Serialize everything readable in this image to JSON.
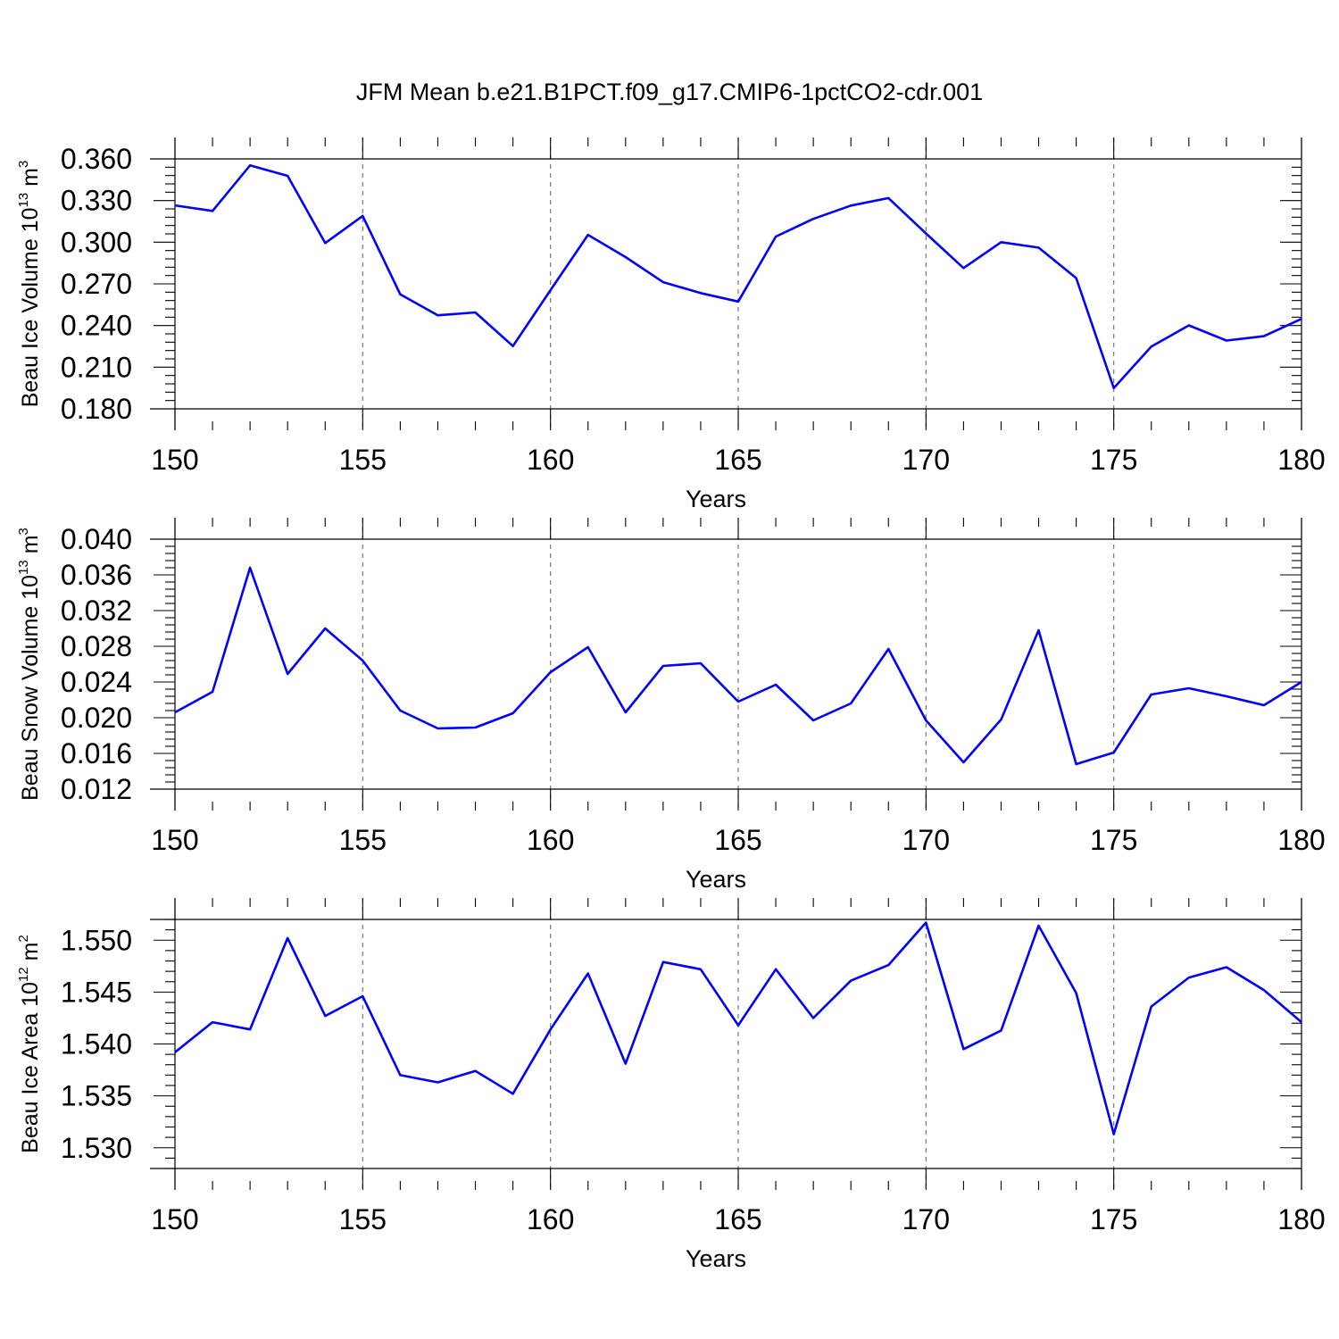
{
  "title": "JFM Mean b.e21.B1PCT.f09_g17.CMIP6-1pctCO2-cdr.001",
  "line_color": "#0000ff",
  "chart_data": [
    {
      "type": "line",
      "ylabel": "Beau Ice Volume 10",
      "ylabel_exp": "13",
      "ylabel_unit": "m",
      "ylabel_unit_exp": "3",
      "xlabel": "Years",
      "xlim": [
        150,
        180
      ],
      "ylim": [
        0.18,
        0.36
      ],
      "yticks": [
        "0.180",
        "0.210",
        "0.240",
        "0.270",
        "0.300",
        "0.330",
        "0.360"
      ],
      "xticks": [
        "150",
        "155",
        "160",
        "165",
        "170",
        "175",
        "180"
      ],
      "x": [
        150,
        151,
        152,
        153,
        154,
        155,
        156,
        157,
        158,
        159,
        160,
        161,
        162,
        163,
        164,
        165,
        166,
        167,
        168,
        169,
        170,
        171,
        172,
        173,
        174,
        175,
        176,
        177,
        178,
        179,
        180
      ],
      "values": [
        0.3265,
        0.3225,
        0.3553,
        0.3478,
        0.2994,
        0.3189,
        0.2624,
        0.2474,
        0.2494,
        0.2252,
        0.2655,
        0.3053,
        0.2893,
        0.2712,
        0.2634,
        0.2573,
        0.3041,
        0.3168,
        0.3264,
        0.3318,
        0.3063,
        0.2814,
        0.3,
        0.2961,
        0.2742,
        0.195,
        0.2248,
        0.2401,
        0.2292,
        0.2323,
        0.2448
      ]
    },
    {
      "type": "line",
      "ylabel": "Beau Snow Volume 10",
      "ylabel_exp": "13",
      "ylabel_unit": "m",
      "ylabel_unit_exp": "3",
      "xlabel": "Years",
      "xlim": [
        150,
        180
      ],
      "ylim": [
        0.012,
        0.04
      ],
      "yticks": [
        "0.012",
        "0.016",
        "0.020",
        "0.024",
        "0.028",
        "0.032",
        "0.036",
        "0.040"
      ],
      "xticks": [
        "150",
        "155",
        "160",
        "165",
        "170",
        "175",
        "180"
      ],
      "x": [
        150,
        151,
        152,
        153,
        154,
        155,
        156,
        157,
        158,
        159,
        160,
        161,
        162,
        163,
        164,
        165,
        166,
        167,
        168,
        169,
        170,
        171,
        172,
        173,
        174,
        175,
        176,
        177,
        178,
        179,
        180
      ],
      "values": [
        0.0206,
        0.0229,
        0.0368,
        0.0249,
        0.03,
        0.0264,
        0.0208,
        0.0188,
        0.0189,
        0.0205,
        0.0251,
        0.0279,
        0.0206,
        0.0258,
        0.0261,
        0.0218,
        0.0237,
        0.0197,
        0.0216,
        0.0277,
        0.0197,
        0.015,
        0.0198,
        0.0298,
        0.0148,
        0.0161,
        0.0226,
        0.0233,
        0.0224,
        0.0214,
        0.024
      ]
    },
    {
      "type": "line",
      "ylabel": "Beau Ice Area 10",
      "ylabel_exp": "12",
      "ylabel_unit": "m",
      "ylabel_unit_exp": "2",
      "xlabel": "Years",
      "xlim": [
        150,
        180
      ],
      "ylim": [
        1.528,
        1.552
      ],
      "yticks": [
        "1.530",
        "1.535",
        "1.540",
        "1.545",
        "1.550"
      ],
      "xticks": [
        "150",
        "155",
        "160",
        "165",
        "170",
        "175",
        "180"
      ],
      "x": [
        150,
        151,
        152,
        153,
        154,
        155,
        156,
        157,
        158,
        159,
        160,
        161,
        162,
        163,
        164,
        165,
        166,
        167,
        168,
        169,
        170,
        171,
        172,
        173,
        174,
        175,
        176,
        177,
        178,
        179,
        180
      ],
      "values": [
        1.5392,
        1.5421,
        1.5414,
        1.5502,
        1.5427,
        1.5446,
        1.537,
        1.5363,
        1.5374,
        1.5352,
        1.5414,
        1.5468,
        1.5381,
        1.5479,
        1.5472,
        1.5418,
        1.5472,
        1.5425,
        1.5461,
        1.5476,
        1.5517,
        1.5395,
        1.5413,
        1.5514,
        1.5449,
        1.5313,
        1.5436,
        1.5464,
        1.5474,
        1.5452,
        1.5421
      ]
    }
  ]
}
